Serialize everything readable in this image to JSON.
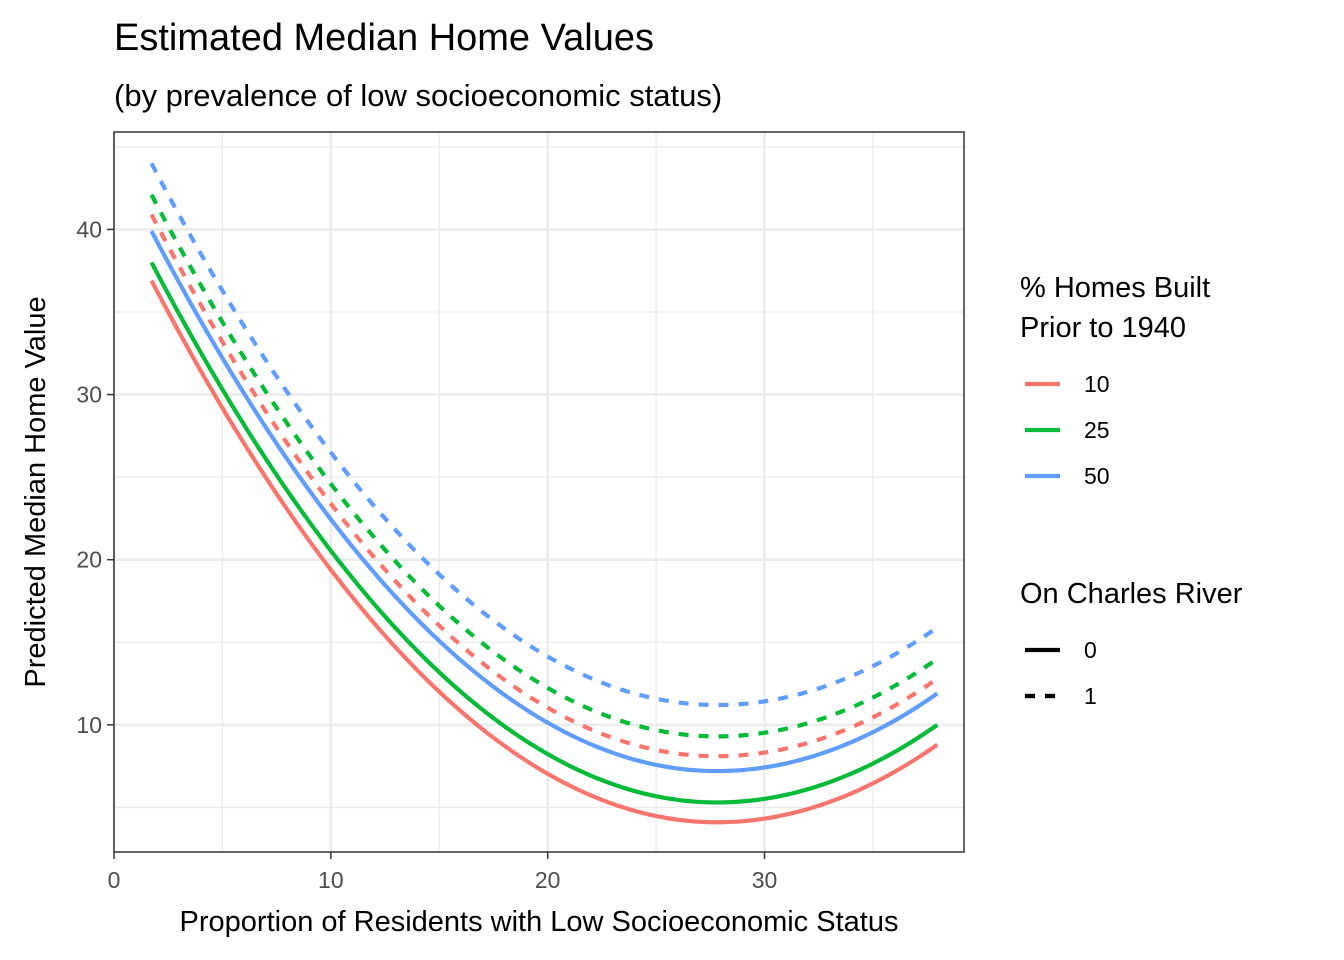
{
  "chart_data": {
    "type": "line",
    "title": "Estimated Median Home Values",
    "subtitle": "(by prevalence of low socioeconomic status)",
    "xlabel": "Proportion of Residents with Low Socioeconomic Status",
    "ylabel": "Predicted Median Home Value",
    "xlim": [
      0,
      39.2
    ],
    "ylim": [
      2.3,
      45.9
    ],
    "x_ticks": [
      0,
      10,
      20,
      30
    ],
    "y_ticks": [
      10,
      20,
      30,
      40
    ],
    "x_tick_labels": [
      "0",
      "10",
      "20",
      "30"
    ],
    "y_tick_labels": [
      "10",
      "20",
      "30",
      "40"
    ],
    "grid": true,
    "x_range": [
      1.73,
      37.97
    ],
    "vertex_x": 27.8,
    "series": [
      {
        "age": "10",
        "chas": "0",
        "color": "#F8766D",
        "dashed": false,
        "start": 36.9,
        "minimum": 4.1,
        "end": 8.8
      },
      {
        "age": "25",
        "chas": "0",
        "color": "#00BA38",
        "dashed": false,
        "start": 38.0,
        "minimum": 5.3,
        "end": 10.0
      },
      {
        "age": "50",
        "chas": "0",
        "color": "#619CFF",
        "dashed": false,
        "start": 39.9,
        "minimum": 7.2,
        "end": 11.9
      },
      {
        "age": "10",
        "chas": "1",
        "color": "#F8766D",
        "dashed": true,
        "start": 40.9,
        "minimum": 8.1,
        "end": 12.8
      },
      {
        "age": "25",
        "chas": "1",
        "color": "#00BA38",
        "dashed": true,
        "start": 42.1,
        "minimum": 9.3,
        "end": 14.0
      },
      {
        "age": "50",
        "chas": "1",
        "color": "#619CFF",
        "dashed": true,
        "start": 44.0,
        "minimum": 11.2,
        "end": 15.9
      }
    ],
    "legend": {
      "placement": "right",
      "color_title_line1": "% Homes Built",
      "color_title_line2": "Prior to 1940",
      "color_items": [
        {
          "label": "10",
          "color": "#F8766D"
        },
        {
          "label": "25",
          "color": "#00BA38"
        },
        {
          "label": "50",
          "color": "#619CFF"
        }
      ],
      "linetype_title": "On Charles River",
      "linetype_items": [
        {
          "label": "0",
          "dashed": false
        },
        {
          "label": "1",
          "dashed": true
        }
      ]
    }
  }
}
